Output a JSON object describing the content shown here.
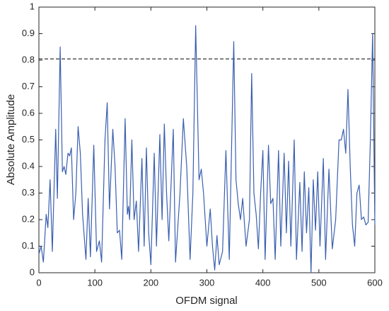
{
  "chart_data": {
    "type": "line",
    "xlabel": "OFDM signal",
    "ylabel": "Absolute Amplitude",
    "xlim": [
      0,
      600
    ],
    "ylim": [
      0,
      1
    ],
    "xticks": [
      0,
      100,
      200,
      300,
      400,
      500,
      600
    ],
    "yticks": [
      0,
      0.1,
      0.2,
      0.3,
      0.4,
      0.5,
      0.6,
      0.7,
      0.8,
      0.9,
      1
    ],
    "hlines": [
      0.805
    ],
    "hline_color": "#000000",
    "hline_style": "dashed",
    "x": [
      0,
      4,
      8,
      13,
      16,
      20,
      24,
      30,
      33,
      38,
      42,
      45,
      48,
      52,
      55,
      58,
      62,
      66,
      70,
      74,
      78,
      84,
      88,
      92,
      98,
      103,
      108,
      112,
      118,
      122,
      126,
      132,
      136,
      140,
      144,
      148,
      154,
      158,
      160,
      162,
      166,
      170,
      174,
      178,
      184,
      188,
      192,
      196,
      200,
      206,
      210,
      216,
      220,
      224,
      228,
      232,
      240,
      244,
      252,
      258,
      264,
      270,
      275,
      280,
      286,
      290,
      294,
      300,
      306,
      310,
      314,
      318,
      322,
      328,
      334,
      340,
      348,
      352,
      356,
      360,
      364,
      370,
      376,
      380,
      384,
      388,
      392,
      396,
      400,
      404,
      410,
      414,
      418,
      422,
      428,
      432,
      438,
      442,
      446,
      450,
      456,
      460,
      466,
      470,
      474,
      478,
      482,
      486,
      490,
      494,
      498,
      502,
      508,
      512,
      518,
      524,
      530,
      536,
      540,
      544,
      548,
      552,
      556,
      560,
      564,
      568,
      572,
      576,
      580,
      584,
      588,
      592,
      596,
      600
    ],
    "series": [
      {
        "color": "#3a5fb0",
        "values": [
          0.07,
          0.1,
          0.04,
          0.22,
          0.17,
          0.35,
          0.08,
          0.54,
          0.28,
          0.85,
          0.38,
          0.4,
          0.37,
          0.45,
          0.44,
          0.47,
          0.2,
          0.3,
          0.55,
          0.45,
          0.22,
          0.05,
          0.28,
          0.06,
          0.48,
          0.08,
          0.12,
          0.04,
          0.5,
          0.64,
          0.24,
          0.54,
          0.4,
          0.15,
          0.16,
          0.05,
          0.58,
          0.22,
          0.25,
          0.2,
          0.5,
          0.2,
          0.27,
          0.08,
          0.43,
          0.1,
          0.47,
          0.15,
          0.03,
          0.45,
          0.1,
          0.52,
          0.2,
          0.56,
          0.3,
          0.12,
          0.54,
          0.04,
          0.3,
          0.58,
          0.4,
          0.05,
          0.3,
          0.93,
          0.35,
          0.39,
          0.3,
          0.1,
          0.24,
          0.1,
          0.01,
          0.14,
          0.03,
          0.08,
          0.46,
          0.05,
          0.87,
          0.35,
          0.26,
          0.2,
          0.28,
          0.1,
          0.2,
          0.75,
          0.3,
          0.22,
          0.09,
          0.3,
          0.46,
          0.05,
          0.48,
          0.26,
          0.28,
          0.05,
          0.46,
          0.1,
          0.45,
          0.15,
          0.42,
          0.1,
          0.5,
          0.05,
          0.34,
          0.08,
          0.38,
          0.15,
          0.32,
          0.0,
          0.35,
          0.16,
          0.38,
          0.1,
          0.43,
          0.05,
          0.39,
          0.09,
          0.2,
          0.5,
          0.5,
          0.54,
          0.45,
          0.69,
          0.4,
          0.18,
          0.1,
          0.3,
          0.33,
          0.2,
          0.21,
          0.18,
          0.19,
          0.5,
          0.9,
          0.18
        ]
      }
    ]
  }
}
